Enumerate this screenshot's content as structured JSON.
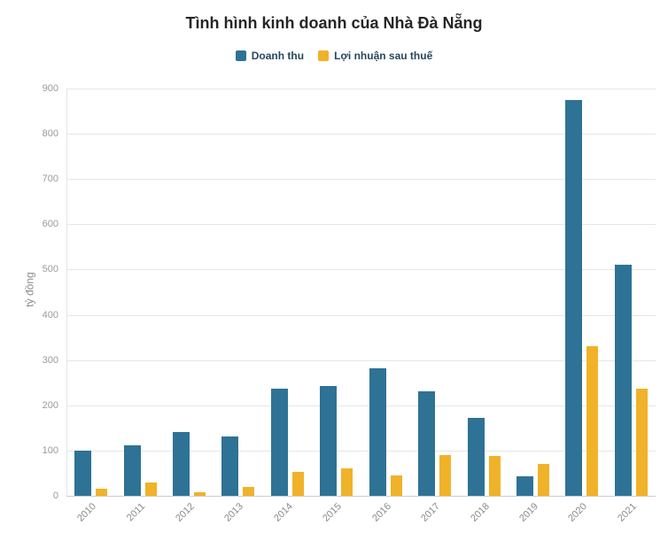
{
  "chart_data": {
    "type": "bar",
    "title": "Tình hình kinh doanh của Nhà Đà Nẵng",
    "xlabel": "",
    "ylabel": "tỷ đồng",
    "categories": [
      "2010",
      "2011",
      "2012",
      "2013",
      "2014",
      "2015",
      "2016",
      "2017",
      "2018",
      "2019",
      "2020",
      "2021"
    ],
    "series": [
      {
        "name": "Doanh thu",
        "color": "#2e7296",
        "values": [
          100,
          112,
          140,
          132,
          236,
          243,
          282,
          230,
          172,
          43,
          875,
          510
        ]
      },
      {
        "name": "Lợi nhuận sau thuế",
        "color": "#f0b228",
        "values": [
          16,
          30,
          8,
          20,
          52,
          60,
          45,
          90,
          88,
          70,
          330,
          236
        ]
      }
    ],
    "ylim": [
      0,
      900
    ],
    "ytick_step": 100,
    "yticks": [
      "0",
      "100",
      "200",
      "300",
      "400",
      "500",
      "600",
      "700",
      "800",
      "900"
    ],
    "grid": "horizontal",
    "legend_position": "top"
  }
}
